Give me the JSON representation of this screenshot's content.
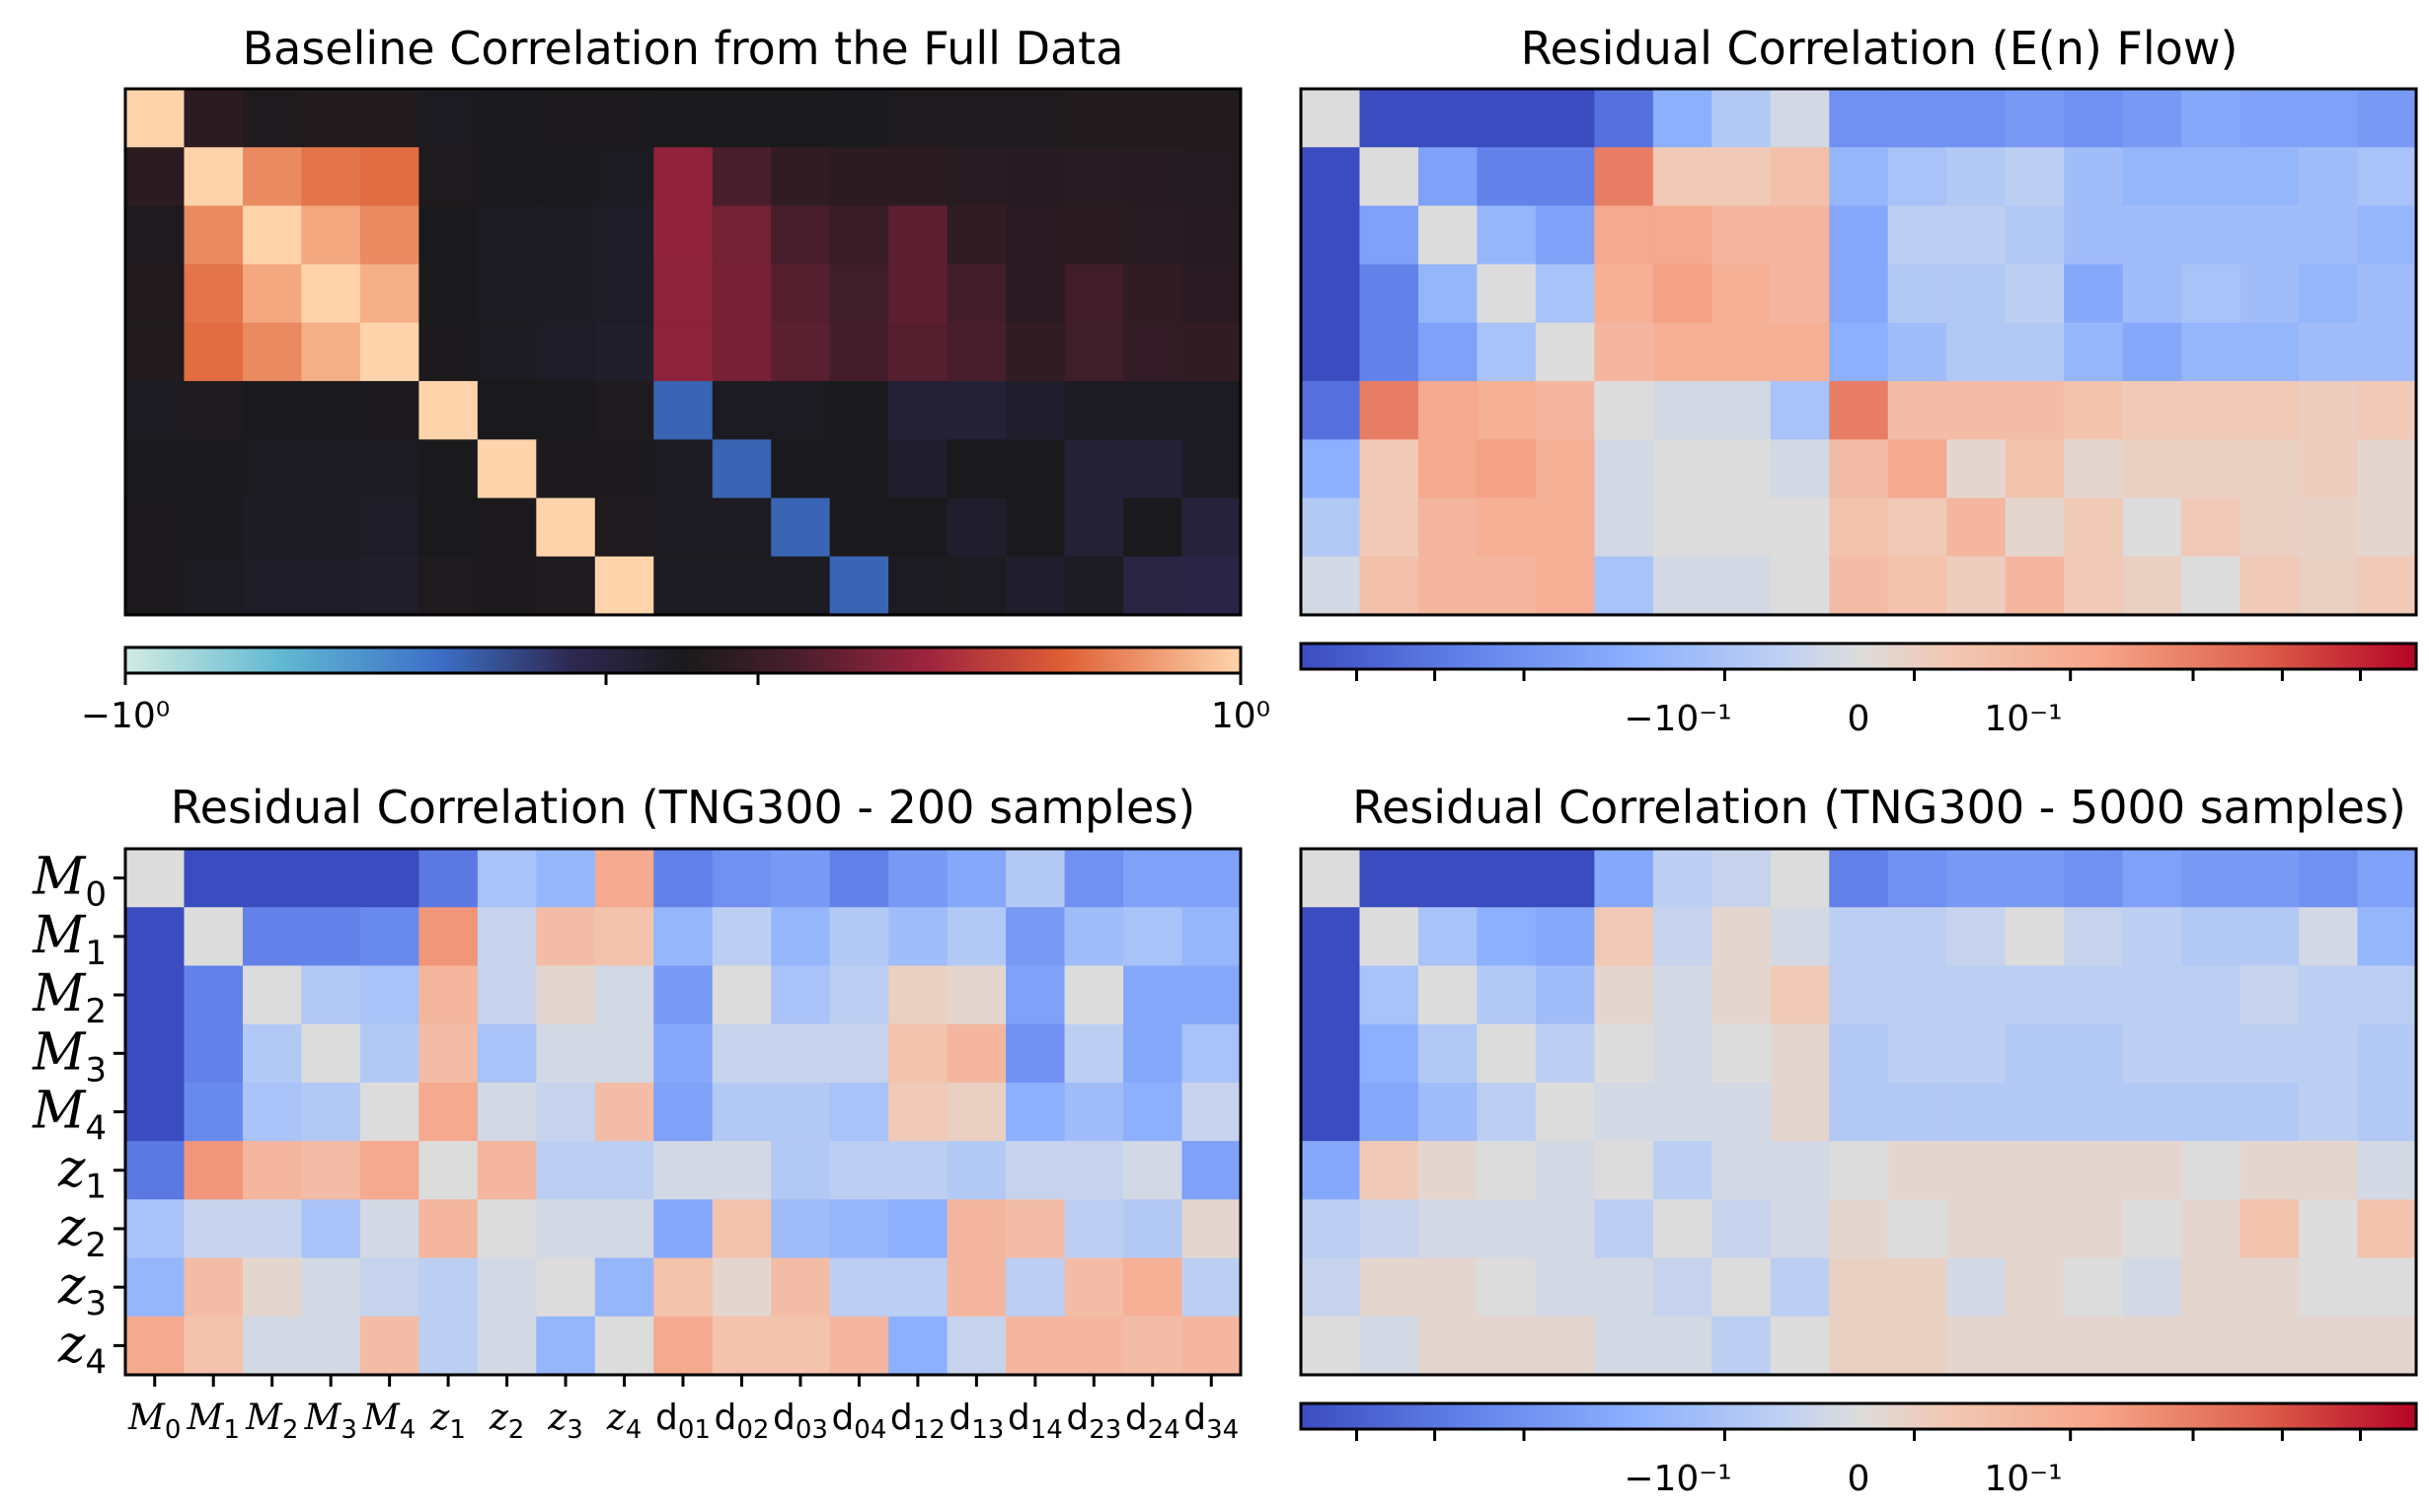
{
  "figure": {
    "row_labels": [
      "M0",
      "M1",
      "M2",
      "M3",
      "M4",
      "z1",
      "z2",
      "z3",
      "z4"
    ],
    "column_labels": [
      "M0",
      "M1",
      "M2",
      "M3",
      "M4",
      "z1",
      "z2",
      "z3",
      "z4",
      "d01",
      "d02",
      "d03",
      "d04",
      "d12",
      "d13",
      "d14",
      "d23",
      "d24",
      "d34"
    ],
    "colors": {
      "background": "#ffffff",
      "frame": "#000000"
    }
  },
  "chart_data": [
    {
      "type": "heatmap",
      "id": "baseline",
      "title": "Baseline Correlation from the Full Data",
      "colormap": "icefire",
      "colorbar": {
        "min_label": "−10⁰",
        "max_label": "10⁰",
        "ticks": [
          "−10⁰",
          "10⁰"
        ]
      },
      "values": [
        [
          1.0,
          0.08,
          0.02,
          0.03,
          0.03,
          -0.02,
          -0.01,
          0.01,
          0.01,
          0.0,
          0.0,
          0.0,
          -0.01,
          0.02,
          0.02,
          0.02,
          0.03,
          0.03,
          0.03
        ],
        [
          0.08,
          1.0,
          0.8,
          0.74,
          0.72,
          0.02,
          -0.01,
          -0.01,
          -0.02,
          0.4,
          0.2,
          0.1,
          0.08,
          0.08,
          0.06,
          0.05,
          0.06,
          0.05,
          0.04
        ],
        [
          0.02,
          0.8,
          1.0,
          0.88,
          0.8,
          0.0,
          -0.02,
          -0.03,
          -0.04,
          0.4,
          0.32,
          0.2,
          0.13,
          0.26,
          0.1,
          0.07,
          0.08,
          0.06,
          0.05
        ],
        [
          0.03,
          0.74,
          0.88,
          1.0,
          0.9,
          0.0,
          -0.02,
          -0.03,
          -0.04,
          0.39,
          0.33,
          0.24,
          0.16,
          0.26,
          0.18,
          0.07,
          0.17,
          0.1,
          0.07
        ],
        [
          0.03,
          0.72,
          0.8,
          0.9,
          1.0,
          0.01,
          -0.02,
          -0.04,
          -0.05,
          0.39,
          0.33,
          0.25,
          0.18,
          0.24,
          0.2,
          0.1,
          0.16,
          0.11,
          0.1
        ],
        [
          -0.02,
          0.02,
          0.0,
          0.0,
          0.01,
          1.0,
          0.0,
          0.0,
          0.02,
          -0.4,
          -0.02,
          -0.02,
          -0.01,
          -0.1,
          -0.1,
          -0.06,
          -0.02,
          -0.02,
          -0.02
        ],
        [
          -0.01,
          -0.01,
          -0.02,
          -0.02,
          -0.02,
          0.0,
          1.0,
          0.01,
          0.01,
          -0.02,
          -0.4,
          -0.01,
          -0.01,
          -0.06,
          0.0,
          0.0,
          -0.1,
          -0.1,
          -0.02
        ],
        [
          0.01,
          -0.01,
          -0.03,
          -0.03,
          -0.04,
          0.0,
          0.01,
          1.0,
          0.02,
          -0.02,
          -0.02,
          -0.4,
          0.0,
          0.0,
          -0.06,
          0.0,
          -0.1,
          0.0,
          -0.12
        ],
        [
          0.01,
          -0.02,
          -0.04,
          -0.04,
          -0.05,
          0.02,
          0.01,
          0.02,
          1.0,
          -0.02,
          -0.02,
          -0.02,
          -0.4,
          -0.02,
          -0.02,
          -0.06,
          -0.02,
          -0.14,
          -0.16
        ]
      ]
    },
    {
      "type": "heatmap",
      "id": "enflow",
      "title": "Residual Correlation (E(n) Flow)",
      "colormap": "coolwarm",
      "colorbar": {
        "ticks": [
          "−10⁻¹",
          "0",
          "10⁻¹"
        ]
      },
      "values": [
        [
          0.0,
          -1.0,
          -1.0,
          -1.0,
          -1.0,
          -0.8,
          -0.4,
          -0.2,
          -0.05,
          -0.6,
          -0.6,
          -0.6,
          -0.55,
          -0.6,
          -0.55,
          -0.45,
          -0.5,
          -0.5,
          -0.55
        ],
        [
          -1.0,
          0.0,
          -0.5,
          -0.7,
          -0.7,
          0.6,
          0.15,
          0.15,
          0.22,
          -0.35,
          -0.25,
          -0.2,
          -0.15,
          -0.3,
          -0.35,
          -0.35,
          -0.35,
          -0.3,
          -0.25
        ],
        [
          -1.0,
          -0.5,
          0.0,
          -0.35,
          -0.5,
          0.4,
          0.4,
          0.3,
          0.3,
          -0.45,
          -0.15,
          -0.15,
          -0.2,
          -0.3,
          -0.3,
          -0.3,
          -0.3,
          -0.3,
          -0.35
        ],
        [
          -1.0,
          -0.7,
          -0.35,
          0.0,
          -0.25,
          0.35,
          0.45,
          0.35,
          0.3,
          -0.45,
          -0.2,
          -0.2,
          -0.15,
          -0.45,
          -0.3,
          -0.25,
          -0.3,
          -0.35,
          -0.3
        ],
        [
          -1.0,
          -0.7,
          -0.5,
          -0.25,
          0.0,
          0.3,
          0.35,
          0.35,
          0.35,
          -0.4,
          -0.3,
          -0.2,
          -0.2,
          -0.35,
          -0.45,
          -0.35,
          -0.35,
          -0.3,
          -0.3
        ],
        [
          -0.8,
          0.6,
          0.4,
          0.35,
          0.3,
          0.0,
          -0.05,
          -0.05,
          -0.25,
          0.6,
          0.25,
          0.25,
          0.25,
          0.2,
          0.15,
          0.15,
          0.15,
          0.12,
          0.15
        ],
        [
          -0.4,
          0.15,
          0.4,
          0.45,
          0.35,
          -0.05,
          0.0,
          0.0,
          -0.05,
          0.25,
          0.4,
          0.05,
          0.2,
          0.05,
          0.1,
          0.1,
          0.1,
          0.12,
          0.05
        ],
        [
          -0.2,
          0.15,
          0.3,
          0.35,
          0.35,
          -0.05,
          0.0,
          0.0,
          0.0,
          0.2,
          0.15,
          0.3,
          0.05,
          0.15,
          0.0,
          0.15,
          0.1,
          0.08,
          0.05
        ],
        [
          -0.05,
          0.22,
          0.3,
          0.3,
          0.35,
          -0.25,
          -0.05,
          -0.05,
          0.0,
          0.25,
          0.2,
          0.12,
          0.3,
          0.15,
          0.1,
          0.0,
          0.15,
          0.1,
          0.15
        ]
      ]
    },
    {
      "type": "heatmap",
      "id": "tng200",
      "title": "Residual Correlation (TNG300 - 200 samples)",
      "colormap": "coolwarm",
      "values": [
        [
          0.0,
          -1.0,
          -1.0,
          -1.0,
          -1.0,
          -0.75,
          -0.25,
          -0.35,
          0.4,
          -0.7,
          -0.6,
          -0.55,
          -0.7,
          -0.55,
          -0.45,
          -0.2,
          -0.6,
          -0.5,
          -0.5
        ],
        [
          -1.0,
          0.0,
          -0.7,
          -0.7,
          -0.65,
          0.5,
          -0.1,
          0.25,
          0.2,
          -0.35,
          -0.15,
          -0.35,
          -0.2,
          -0.3,
          -0.2,
          -0.55,
          -0.3,
          -0.25,
          -0.35
        ],
        [
          -1.0,
          -0.7,
          0.0,
          -0.2,
          -0.25,
          0.3,
          -0.1,
          0.05,
          -0.05,
          -0.55,
          0.0,
          -0.25,
          -0.15,
          0.1,
          0.05,
          -0.5,
          0.0,
          -0.45,
          -0.45
        ],
        [
          -1.0,
          -0.7,
          -0.2,
          0.0,
          -0.2,
          0.25,
          -0.25,
          -0.05,
          -0.05,
          -0.45,
          -0.1,
          -0.1,
          -0.1,
          0.2,
          0.3,
          -0.6,
          -0.15,
          -0.45,
          -0.25
        ],
        [
          -1.0,
          -0.65,
          -0.25,
          -0.2,
          0.0,
          0.4,
          -0.05,
          -0.1,
          0.25,
          -0.5,
          -0.2,
          -0.2,
          -0.25,
          0.15,
          0.1,
          -0.4,
          -0.3,
          -0.4,
          -0.1
        ],
        [
          -0.75,
          0.5,
          0.3,
          0.25,
          0.4,
          0.0,
          0.3,
          -0.15,
          -0.15,
          -0.05,
          -0.05,
          -0.2,
          -0.15,
          -0.15,
          -0.2,
          -0.1,
          -0.1,
          -0.05,
          -0.5
        ],
        [
          -0.25,
          -0.1,
          -0.1,
          -0.25,
          -0.05,
          0.3,
          0.0,
          -0.05,
          -0.05,
          -0.45,
          0.2,
          -0.3,
          -0.35,
          -0.4,
          0.3,
          0.25,
          -0.15,
          -0.2,
          0.05
        ],
        [
          -0.35,
          0.25,
          0.05,
          -0.05,
          -0.1,
          -0.15,
          -0.05,
          0.0,
          -0.35,
          0.2,
          0.05,
          0.25,
          -0.15,
          -0.15,
          0.3,
          -0.15,
          0.25,
          0.35,
          -0.15
        ],
        [
          0.4,
          0.2,
          -0.05,
          -0.05,
          0.25,
          -0.15,
          -0.05,
          -0.35,
          0.0,
          0.4,
          0.2,
          0.2,
          0.3,
          -0.4,
          -0.1,
          0.3,
          0.3,
          0.25,
          0.3
        ]
      ]
    },
    {
      "type": "heatmap",
      "id": "tng5000",
      "title": "Residual Correlation (TNG300 - 5000 samples)",
      "colormap": "coolwarm",
      "colorbar": {
        "ticks": [
          "−10⁻¹",
          "0",
          "10⁻¹"
        ]
      },
      "values": [
        [
          0.0,
          -1.0,
          -1.0,
          -1.0,
          -1.0,
          -0.45,
          -0.15,
          -0.1,
          0.0,
          -0.7,
          -0.6,
          -0.55,
          -0.55,
          -0.6,
          -0.5,
          -0.55,
          -0.55,
          -0.6,
          -0.5
        ],
        [
          -1.0,
          0.0,
          -0.25,
          -0.4,
          -0.45,
          0.15,
          -0.1,
          0.05,
          -0.05,
          -0.15,
          -0.15,
          -0.1,
          0.0,
          -0.1,
          -0.15,
          -0.2,
          -0.2,
          -0.05,
          -0.35
        ],
        [
          -1.0,
          -0.25,
          0.0,
          -0.2,
          -0.3,
          0.05,
          -0.05,
          0.05,
          0.15,
          -0.15,
          -0.15,
          -0.15,
          -0.15,
          -0.15,
          -0.15,
          -0.15,
          -0.1,
          -0.15,
          -0.15
        ],
        [
          -1.0,
          -0.4,
          -0.2,
          0.0,
          -0.15,
          0.0,
          -0.05,
          0.0,
          0.05,
          -0.2,
          -0.15,
          -0.15,
          -0.2,
          -0.2,
          -0.15,
          -0.15,
          -0.15,
          -0.15,
          -0.2
        ],
        [
          -1.0,
          -0.45,
          -0.3,
          -0.15,
          0.0,
          -0.05,
          -0.05,
          -0.05,
          0.05,
          -0.2,
          -0.2,
          -0.2,
          -0.2,
          -0.2,
          -0.2,
          -0.2,
          -0.2,
          -0.15,
          -0.2
        ],
        [
          -0.45,
          0.15,
          0.05,
          0.0,
          -0.05,
          0.0,
          -0.15,
          -0.05,
          -0.05,
          0.0,
          0.05,
          0.05,
          0.05,
          0.05,
          0.05,
          0.0,
          0.05,
          0.05,
          -0.05
        ],
        [
          -0.15,
          -0.1,
          -0.05,
          -0.05,
          -0.05,
          -0.15,
          0.0,
          -0.1,
          -0.05,
          0.05,
          0.0,
          0.05,
          0.05,
          0.05,
          0.0,
          0.05,
          0.2,
          0.0,
          0.2
        ],
        [
          -0.1,
          0.05,
          0.05,
          0.0,
          -0.05,
          -0.05,
          -0.1,
          0.0,
          -0.15,
          0.1,
          0.1,
          -0.05,
          0.05,
          0.0,
          -0.05,
          0.05,
          0.05,
          0.0,
          0.0
        ],
        [
          0.0,
          -0.05,
          0.05,
          0.05,
          0.05,
          -0.05,
          -0.05,
          -0.15,
          0.0,
          0.1,
          0.1,
          0.05,
          0.05,
          0.05,
          0.05,
          0.05,
          0.05,
          0.05,
          0.05
        ]
      ]
    }
  ]
}
